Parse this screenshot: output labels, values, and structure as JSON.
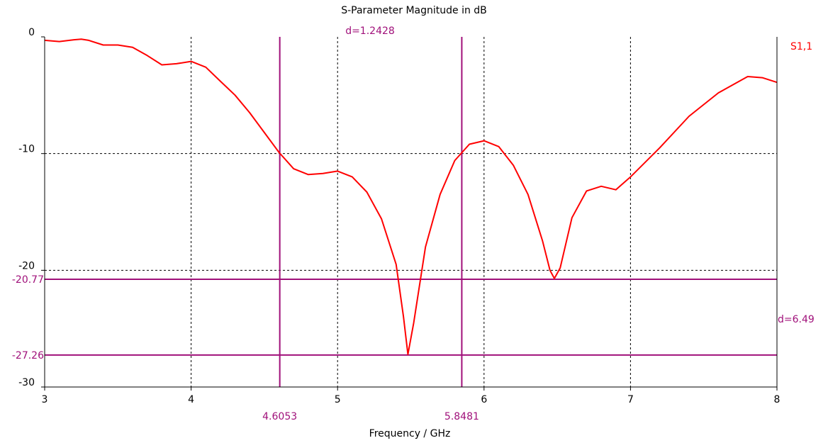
{
  "chart_data": {
    "type": "line",
    "title": "S-Parameter Magnitude in dB",
    "xlabel": "Frequency / GHz",
    "ylabel": "",
    "xlim": [
      3,
      8
    ],
    "ylim": [
      -30,
      0
    ],
    "x_ticks": [
      "3",
      "4",
      "5",
      "6",
      "7",
      "8"
    ],
    "y_ticks": [
      "0",
      "-10",
      "-20",
      "-30"
    ],
    "grid": true,
    "legend_position": "top-right",
    "series": [
      {
        "name": "S1,1",
        "color": "#ff0000",
        "points": [
          [
            3.0,
            -0.3
          ],
          [
            3.1,
            -0.4
          ],
          [
            3.2,
            -0.25
          ],
          [
            3.25,
            -0.2
          ],
          [
            3.3,
            -0.3
          ],
          [
            3.4,
            -0.7
          ],
          [
            3.5,
            -0.7
          ],
          [
            3.6,
            -0.9
          ],
          [
            3.7,
            -1.6
          ],
          [
            3.8,
            -2.4
          ],
          [
            3.9,
            -2.3
          ],
          [
            4.0,
            -2.1
          ],
          [
            4.1,
            -2.6
          ],
          [
            4.2,
            -3.8
          ],
          [
            4.3,
            -5.0
          ],
          [
            4.4,
            -6.5
          ],
          [
            4.5,
            -8.2
          ],
          [
            4.6,
            -9.9
          ],
          [
            4.7,
            -11.3
          ],
          [
            4.8,
            -11.8
          ],
          [
            4.9,
            -11.7
          ],
          [
            5.0,
            -11.5
          ],
          [
            5.1,
            -12.0
          ],
          [
            5.2,
            -13.3
          ],
          [
            5.3,
            -15.6
          ],
          [
            5.4,
            -19.5
          ],
          [
            5.45,
            -24.0
          ],
          [
            5.48,
            -27.2
          ],
          [
            5.52,
            -24.5
          ],
          [
            5.6,
            -18.0
          ],
          [
            5.7,
            -13.5
          ],
          [
            5.8,
            -10.6
          ],
          [
            5.9,
            -9.2
          ],
          [
            6.0,
            -8.9
          ],
          [
            6.1,
            -9.4
          ],
          [
            6.2,
            -11.0
          ],
          [
            6.3,
            -13.5
          ],
          [
            6.4,
            -17.5
          ],
          [
            6.45,
            -20.0
          ],
          [
            6.48,
            -20.7
          ],
          [
            6.52,
            -19.8
          ],
          [
            6.6,
            -15.5
          ],
          [
            6.7,
            -13.2
          ],
          [
            6.8,
            -12.8
          ],
          [
            6.9,
            -13.1
          ],
          [
            7.0,
            -12.0
          ],
          [
            7.2,
            -9.5
          ],
          [
            7.4,
            -6.8
          ],
          [
            7.6,
            -4.8
          ],
          [
            7.8,
            -3.4
          ],
          [
            7.9,
            -3.5
          ],
          [
            8.0,
            -3.9
          ]
        ]
      }
    ],
    "markers": {
      "color": "#a0107a",
      "vertical": [
        {
          "value": 4.6053,
          "label": "4.6053"
        },
        {
          "value": 5.8481,
          "label": "5.8481"
        }
      ],
      "horizontal": [
        {
          "value": -20.77,
          "label": "-20.77"
        },
        {
          "value": -27.26,
          "label": "-27.26"
        }
      ],
      "delta_x_label": "d=1.2428",
      "delta_y_label": "d=6.49"
    }
  }
}
